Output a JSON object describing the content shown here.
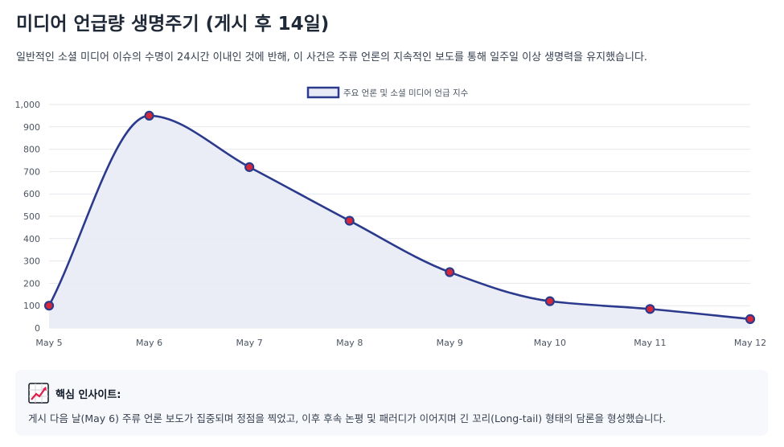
{
  "header": {
    "title": "미디어 언급량 생명주기 (게시 후 14일)",
    "subtitle": "일반적인 소셜 미디어 이슈의 수명이 24시간 이내인 것에 반해, 이 사건은 주류 언론의 지속적인 보도를 통해 일주일 이상 생명력을 유지했습니다."
  },
  "insight": {
    "icon": "chart-increasing-icon",
    "title": "핵심 인사이트:",
    "text": "게시 다음 날(May 6) 주류 언론 보도가 집중되며 정점을 찍었고, 이후 후속 논평 및 패러디가 이어지며 긴 꼬리(Long-tail) 형태의 담론을 형성했습니다."
  },
  "chart_data": {
    "type": "area",
    "categories": [
      "May 5",
      "May 6",
      "May 7",
      "May 8",
      "May 9",
      "May 10",
      "May 11",
      "May 12"
    ],
    "series": [
      {
        "name": "주요 언론 및 소셜 미디어 언급 지수",
        "values": [
          100,
          950,
          720,
          480,
          250,
          120,
          85,
          40
        ]
      }
    ],
    "ylim": [
      0,
      1000
    ],
    "yticks": [
      "0",
      "100",
      "200",
      "300",
      "400",
      "500",
      "600",
      "700",
      "800",
      "900",
      "1,000"
    ],
    "grid": true,
    "legend": "top-center",
    "colors": {
      "line": "#2b3a8c",
      "fill": "#e8eaf5",
      "point_fill": "#d62839",
      "grid": "#e5e7eb"
    }
  }
}
